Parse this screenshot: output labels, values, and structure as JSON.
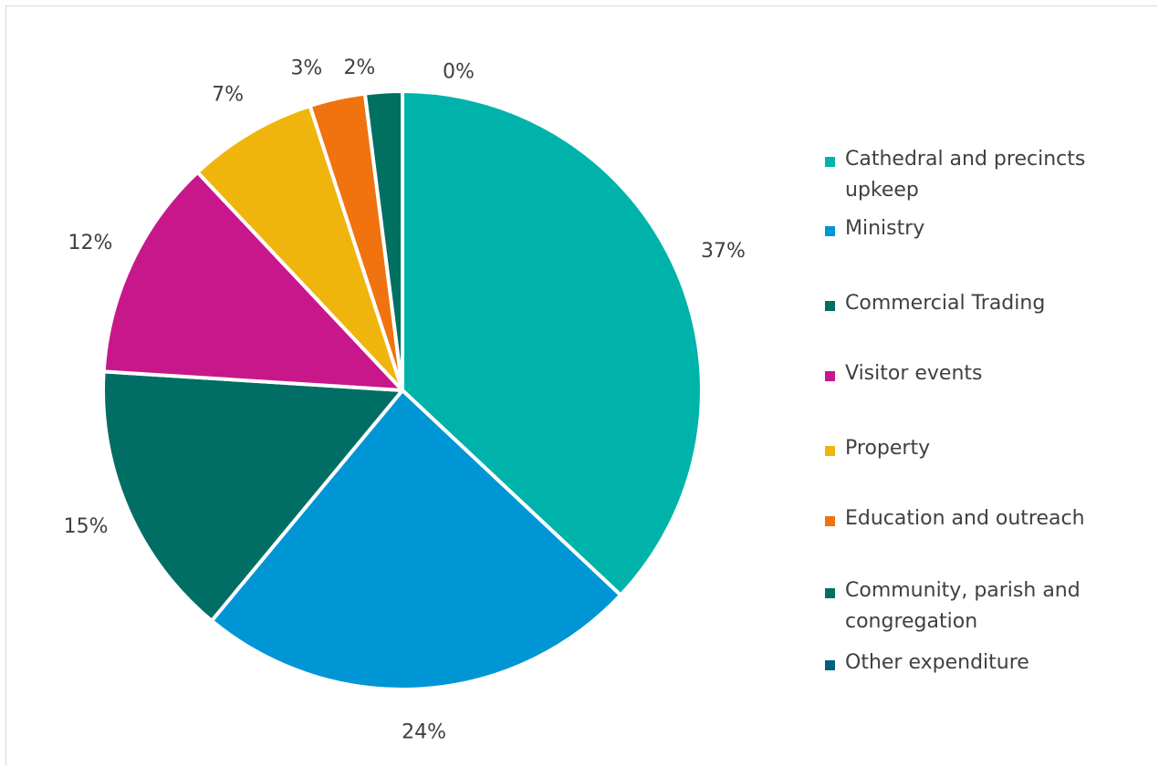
{
  "chart_data": {
    "type": "pie",
    "title": "",
    "categories": [
      "Cathedral and precincts upkeep",
      "Ministry",
      "Commercial Trading",
      "Visitor events",
      "Property",
      "Education and outreach",
      "Community, parish and congregation",
      "Other expenditure"
    ],
    "values": [
      37,
      24,
      15,
      12,
      7,
      3,
      2,
      0
    ],
    "data_labels": [
      "37%",
      "24%",
      "15%",
      "12%",
      "7%",
      "3%",
      "2%",
      "0%"
    ],
    "colors": [
      "#00b3aa",
      "#0096d6",
      "#006e65",
      "#c8178b",
      "#f0b50c",
      "#f0730f",
      "#007060",
      "#005f7f"
    ],
    "start": "top, clockwise",
    "legend_position": "right"
  }
}
